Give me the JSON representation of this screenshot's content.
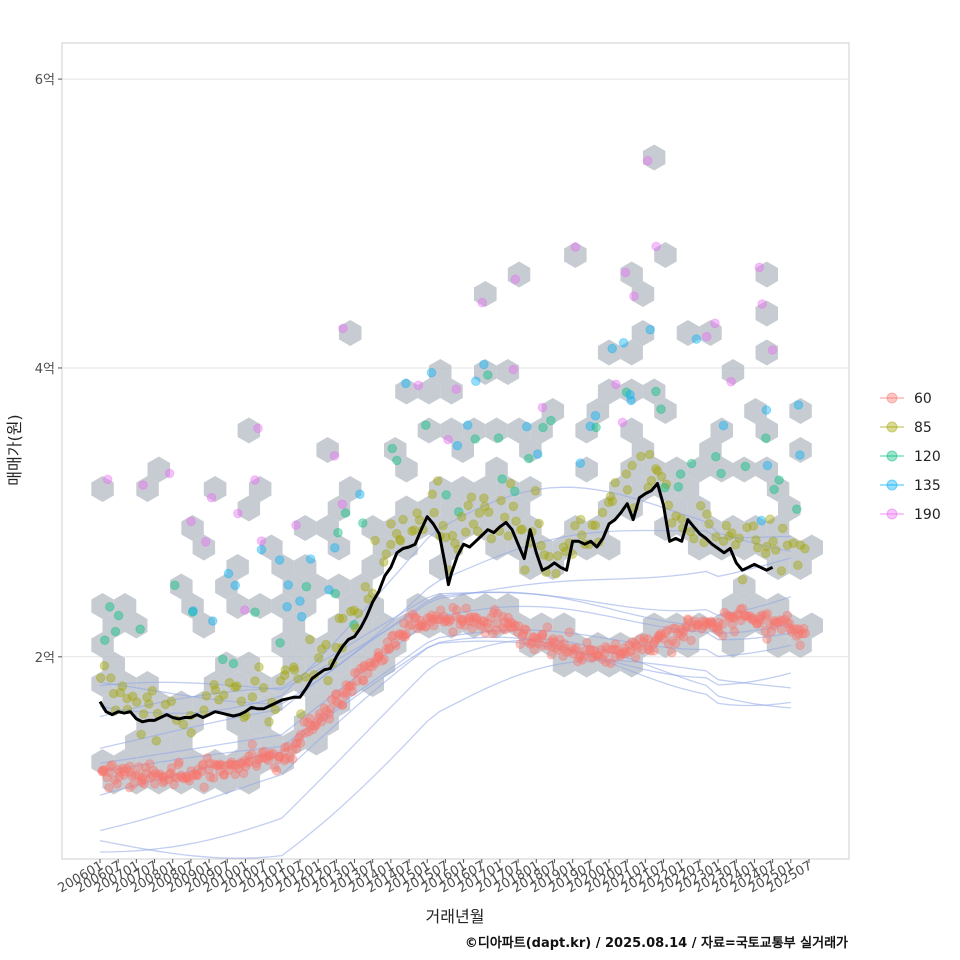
{
  "chart_data": {
    "type": "scatter",
    "xlabel": "거래년월",
    "ylabel": "매매가(원)",
    "caption": "©디아파트(dapt.kr) / 2025.08.14 / 자료=국토교통부 실거래가",
    "x_ticks": [
      "200601",
      "200607",
      "200701",
      "200707",
      "200801",
      "200807",
      "200901",
      "200907",
      "201001",
      "201007",
      "201101",
      "201107",
      "201201",
      "201207",
      "201301",
      "201307",
      "201401",
      "201407",
      "201501",
      "201507",
      "201601",
      "201607",
      "201701",
      "201707",
      "201801",
      "201807",
      "201901",
      "201907",
      "202001",
      "202007",
      "202101",
      "202107",
      "202201",
      "202207",
      "202301",
      "202307",
      "202401",
      "202407",
      "202501",
      "202507"
    ],
    "y_ticks": [
      {
        "value": 2,
        "label": "2억"
      },
      {
        "value": 4,
        "label": "4억"
      },
      {
        "value": 6,
        "label": "6억"
      }
    ],
    "y_unit": "억",
    "ylim": [
      0.6,
      6.25
    ],
    "x_range_months": [
      0,
      235
    ],
    "grid": true,
    "legend_position": "right",
    "series": [
      {
        "name": "60",
        "color": "#F8766D"
      },
      {
        "name": "85",
        "color": "#A3A500"
      },
      {
        "name": "120",
        "color": "#00BF7D"
      },
      {
        "name": "135",
        "color": "#00B0F6"
      },
      {
        "name": "190",
        "color": "#E76BF3"
      }
    ],
    "median_line": {
      "color": "#000000",
      "points": [
        [
          0,
          1.69
        ],
        [
          2,
          1.62
        ],
        [
          4,
          1.6
        ],
        [
          6,
          1.62
        ],
        [
          8,
          1.61
        ],
        [
          10,
          1.62
        ],
        [
          12,
          1.57
        ],
        [
          14,
          1.55
        ],
        [
          16,
          1.56
        ],
        [
          18,
          1.56
        ],
        [
          20,
          1.58
        ],
        [
          22,
          1.6
        ],
        [
          24,
          1.58
        ],
        [
          26,
          1.57
        ],
        [
          28,
          1.58
        ],
        [
          30,
          1.58
        ],
        [
          32,
          1.6
        ],
        [
          34,
          1.58
        ],
        [
          36,
          1.6
        ],
        [
          38,
          1.62
        ],
        [
          40,
          1.61
        ],
        [
          42,
          1.6
        ],
        [
          44,
          1.59
        ],
        [
          46,
          1.6
        ],
        [
          48,
          1.62
        ],
        [
          50,
          1.65
        ],
        [
          52,
          1.64
        ],
        [
          54,
          1.64
        ],
        [
          56,
          1.66
        ],
        [
          58,
          1.68
        ],
        [
          60,
          1.7
        ],
        [
          62,
          1.71
        ],
        [
          64,
          1.72
        ],
        [
          66,
          1.72
        ],
        [
          68,
          1.78
        ],
        [
          70,
          1.85
        ],
        [
          72,
          1.88
        ],
        [
          74,
          1.91
        ],
        [
          76,
          1.92
        ],
        [
          78,
          2.0
        ],
        [
          80,
          2.07
        ],
        [
          82,
          2.12
        ],
        [
          84,
          2.14
        ],
        [
          86,
          2.2
        ],
        [
          88,
          2.28
        ],
        [
          90,
          2.38
        ],
        [
          92,
          2.45
        ],
        [
          94,
          2.56
        ],
        [
          96,
          2.62
        ],
        [
          98,
          2.72
        ],
        [
          100,
          2.75
        ],
        [
          102,
          2.76
        ],
        [
          104,
          2.78
        ],
        [
          106,
          2.88
        ],
        [
          108,
          2.97
        ],
        [
          110,
          2.92
        ],
        [
          112,
          2.85
        ],
        [
          114,
          2.63
        ],
        [
          115,
          2.5
        ],
        [
          116,
          2.58
        ],
        [
          118,
          2.7
        ],
        [
          120,
          2.78
        ],
        [
          122,
          2.76
        ],
        [
          124,
          2.8
        ],
        [
          126,
          2.84
        ],
        [
          128,
          2.88
        ],
        [
          130,
          2.86
        ],
        [
          132,
          2.9
        ],
        [
          134,
          2.93
        ],
        [
          136,
          2.88
        ],
        [
          138,
          2.78
        ],
        [
          140,
          2.68
        ],
        [
          142,
          2.88
        ],
        [
          144,
          2.72
        ],
        [
          146,
          2.6
        ],
        [
          148,
          2.62
        ],
        [
          150,
          2.65
        ],
        [
          152,
          2.62
        ],
        [
          154,
          2.6
        ],
        [
          156,
          2.8
        ],
        [
          158,
          2.8
        ],
        [
          160,
          2.78
        ],
        [
          162,
          2.8
        ],
        [
          164,
          2.76
        ],
        [
          166,
          2.82
        ],
        [
          168,
          2.92
        ],
        [
          170,
          2.95
        ],
        [
          172,
          3.0
        ],
        [
          174,
          3.06
        ],
        [
          176,
          2.95
        ],
        [
          178,
          3.1
        ],
        [
          180,
          3.13
        ],
        [
          182,
          3.15
        ],
        [
          184,
          3.2
        ],
        [
          186,
          3.05
        ],
        [
          188,
          2.8
        ],
        [
          190,
          2.82
        ],
        [
          192,
          2.8
        ],
        [
          194,
          2.95
        ],
        [
          196,
          2.9
        ],
        [
          198,
          2.85
        ],
        [
          200,
          2.82
        ],
        [
          202,
          2.78
        ],
        [
          204,
          2.75
        ],
        [
          206,
          2.72
        ],
        [
          208,
          2.75
        ],
        [
          210,
          2.65
        ],
        [
          212,
          2.6
        ],
        [
          214,
          2.62
        ],
        [
          216,
          2.64
        ],
        [
          218,
          2.62
        ],
        [
          220,
          2.6
        ],
        [
          222,
          2.62
        ]
      ]
    }
  }
}
